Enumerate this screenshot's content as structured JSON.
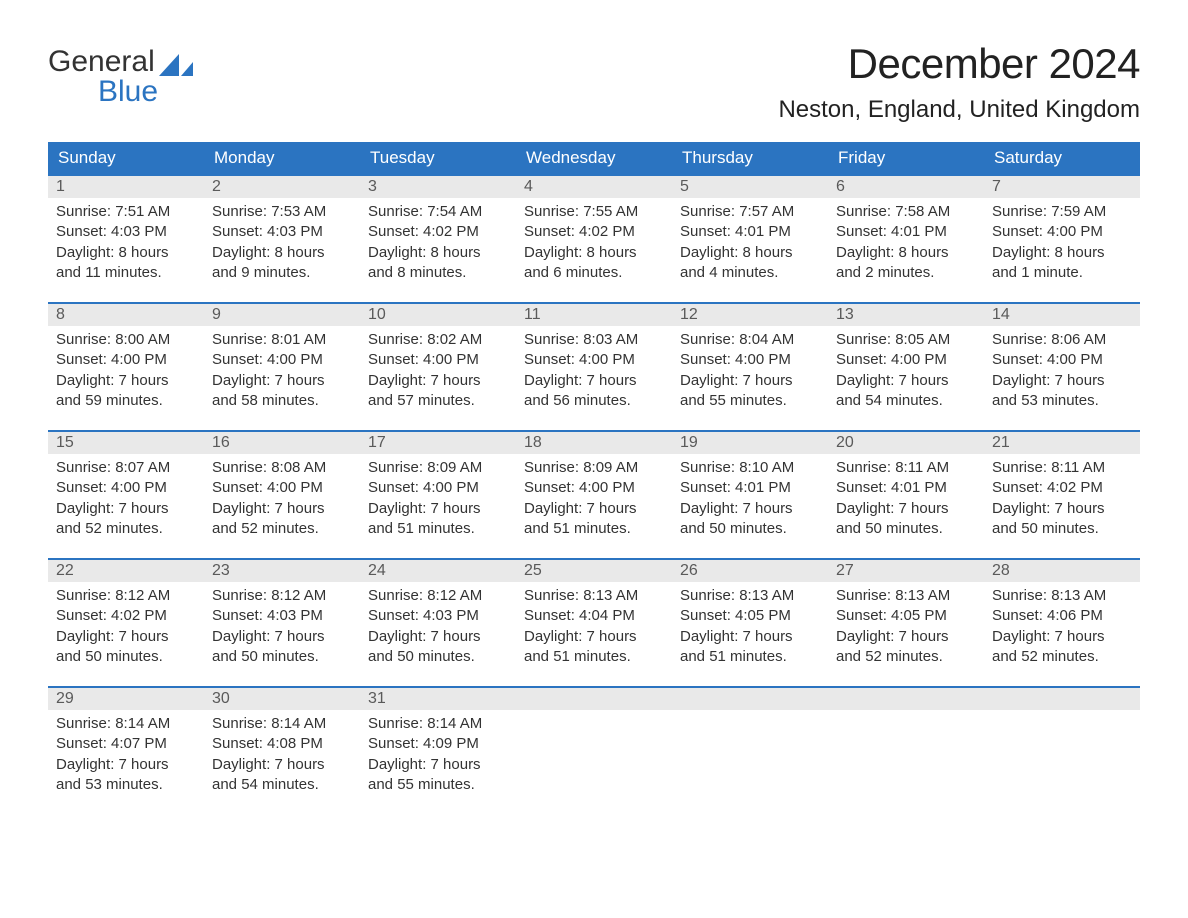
{
  "logo": {
    "word1": "General",
    "word2": "Blue",
    "accent_color": "#2b74c1"
  },
  "title": "December 2024",
  "location": "Neston, England, United Kingdom",
  "colors": {
    "header_bg": "#2b74c1",
    "header_text": "#ffffff",
    "daynum_bg": "#e9e9e9",
    "daynum_text": "#5a5a5a",
    "body_text": "#333333",
    "row_border": "#2b74c1",
    "page_bg": "#ffffff"
  },
  "calendar": {
    "type": "table",
    "columns": [
      "Sunday",
      "Monday",
      "Tuesday",
      "Wednesday",
      "Thursday",
      "Friday",
      "Saturday"
    ],
    "weeks": [
      [
        {
          "num": "1",
          "sunrise": "Sunrise: 7:51 AM",
          "sunset": "Sunset: 4:03 PM",
          "d1": "Daylight: 8 hours",
          "d2": "and 11 minutes."
        },
        {
          "num": "2",
          "sunrise": "Sunrise: 7:53 AM",
          "sunset": "Sunset: 4:03 PM",
          "d1": "Daylight: 8 hours",
          "d2": "and 9 minutes."
        },
        {
          "num": "3",
          "sunrise": "Sunrise: 7:54 AM",
          "sunset": "Sunset: 4:02 PM",
          "d1": "Daylight: 8 hours",
          "d2": "and 8 minutes."
        },
        {
          "num": "4",
          "sunrise": "Sunrise: 7:55 AM",
          "sunset": "Sunset: 4:02 PM",
          "d1": "Daylight: 8 hours",
          "d2": "and 6 minutes."
        },
        {
          "num": "5",
          "sunrise": "Sunrise: 7:57 AM",
          "sunset": "Sunset: 4:01 PM",
          "d1": "Daylight: 8 hours",
          "d2": "and 4 minutes."
        },
        {
          "num": "6",
          "sunrise": "Sunrise: 7:58 AM",
          "sunset": "Sunset: 4:01 PM",
          "d1": "Daylight: 8 hours",
          "d2": "and 2 minutes."
        },
        {
          "num": "7",
          "sunrise": "Sunrise: 7:59 AM",
          "sunset": "Sunset: 4:00 PM",
          "d1": "Daylight: 8 hours",
          "d2": "and 1 minute."
        }
      ],
      [
        {
          "num": "8",
          "sunrise": "Sunrise: 8:00 AM",
          "sunset": "Sunset: 4:00 PM",
          "d1": "Daylight: 7 hours",
          "d2": "and 59 minutes."
        },
        {
          "num": "9",
          "sunrise": "Sunrise: 8:01 AM",
          "sunset": "Sunset: 4:00 PM",
          "d1": "Daylight: 7 hours",
          "d2": "and 58 minutes."
        },
        {
          "num": "10",
          "sunrise": "Sunrise: 8:02 AM",
          "sunset": "Sunset: 4:00 PM",
          "d1": "Daylight: 7 hours",
          "d2": "and 57 minutes."
        },
        {
          "num": "11",
          "sunrise": "Sunrise: 8:03 AM",
          "sunset": "Sunset: 4:00 PM",
          "d1": "Daylight: 7 hours",
          "d2": "and 56 minutes."
        },
        {
          "num": "12",
          "sunrise": "Sunrise: 8:04 AM",
          "sunset": "Sunset: 4:00 PM",
          "d1": "Daylight: 7 hours",
          "d2": "and 55 minutes."
        },
        {
          "num": "13",
          "sunrise": "Sunrise: 8:05 AM",
          "sunset": "Sunset: 4:00 PM",
          "d1": "Daylight: 7 hours",
          "d2": "and 54 minutes."
        },
        {
          "num": "14",
          "sunrise": "Sunrise: 8:06 AM",
          "sunset": "Sunset: 4:00 PM",
          "d1": "Daylight: 7 hours",
          "d2": "and 53 minutes."
        }
      ],
      [
        {
          "num": "15",
          "sunrise": "Sunrise: 8:07 AM",
          "sunset": "Sunset: 4:00 PM",
          "d1": "Daylight: 7 hours",
          "d2": "and 52 minutes."
        },
        {
          "num": "16",
          "sunrise": "Sunrise: 8:08 AM",
          "sunset": "Sunset: 4:00 PM",
          "d1": "Daylight: 7 hours",
          "d2": "and 52 minutes."
        },
        {
          "num": "17",
          "sunrise": "Sunrise: 8:09 AM",
          "sunset": "Sunset: 4:00 PM",
          "d1": "Daylight: 7 hours",
          "d2": "and 51 minutes."
        },
        {
          "num": "18",
          "sunrise": "Sunrise: 8:09 AM",
          "sunset": "Sunset: 4:00 PM",
          "d1": "Daylight: 7 hours",
          "d2": "and 51 minutes."
        },
        {
          "num": "19",
          "sunrise": "Sunrise: 8:10 AM",
          "sunset": "Sunset: 4:01 PM",
          "d1": "Daylight: 7 hours",
          "d2": "and 50 minutes."
        },
        {
          "num": "20",
          "sunrise": "Sunrise: 8:11 AM",
          "sunset": "Sunset: 4:01 PM",
          "d1": "Daylight: 7 hours",
          "d2": "and 50 minutes."
        },
        {
          "num": "21",
          "sunrise": "Sunrise: 8:11 AM",
          "sunset": "Sunset: 4:02 PM",
          "d1": "Daylight: 7 hours",
          "d2": "and 50 minutes."
        }
      ],
      [
        {
          "num": "22",
          "sunrise": "Sunrise: 8:12 AM",
          "sunset": "Sunset: 4:02 PM",
          "d1": "Daylight: 7 hours",
          "d2": "and 50 minutes."
        },
        {
          "num": "23",
          "sunrise": "Sunrise: 8:12 AM",
          "sunset": "Sunset: 4:03 PM",
          "d1": "Daylight: 7 hours",
          "d2": "and 50 minutes."
        },
        {
          "num": "24",
          "sunrise": "Sunrise: 8:12 AM",
          "sunset": "Sunset: 4:03 PM",
          "d1": "Daylight: 7 hours",
          "d2": "and 50 minutes."
        },
        {
          "num": "25",
          "sunrise": "Sunrise: 8:13 AM",
          "sunset": "Sunset: 4:04 PM",
          "d1": "Daylight: 7 hours",
          "d2": "and 51 minutes."
        },
        {
          "num": "26",
          "sunrise": "Sunrise: 8:13 AM",
          "sunset": "Sunset: 4:05 PM",
          "d1": "Daylight: 7 hours",
          "d2": "and 51 minutes."
        },
        {
          "num": "27",
          "sunrise": "Sunrise: 8:13 AM",
          "sunset": "Sunset: 4:05 PM",
          "d1": "Daylight: 7 hours",
          "d2": "and 52 minutes."
        },
        {
          "num": "28",
          "sunrise": "Sunrise: 8:13 AM",
          "sunset": "Sunset: 4:06 PM",
          "d1": "Daylight: 7 hours",
          "d2": "and 52 minutes."
        }
      ],
      [
        {
          "num": "29",
          "sunrise": "Sunrise: 8:14 AM",
          "sunset": "Sunset: 4:07 PM",
          "d1": "Daylight: 7 hours",
          "d2": "and 53 minutes."
        },
        {
          "num": "30",
          "sunrise": "Sunrise: 8:14 AM",
          "sunset": "Sunset: 4:08 PM",
          "d1": "Daylight: 7 hours",
          "d2": "and 54 minutes."
        },
        {
          "num": "31",
          "sunrise": "Sunrise: 8:14 AM",
          "sunset": "Sunset: 4:09 PM",
          "d1": "Daylight: 7 hours",
          "d2": "and 55 minutes."
        },
        null,
        null,
        null,
        null
      ]
    ]
  }
}
